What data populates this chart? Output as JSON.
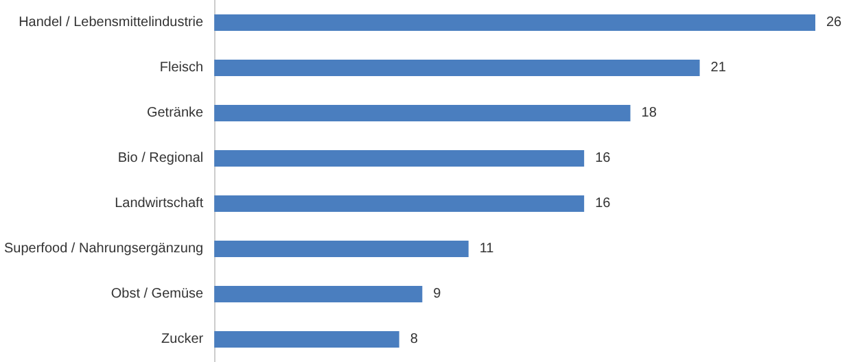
{
  "chart_data": {
    "type": "bar",
    "orientation": "horizontal",
    "categories": [
      "Handel / Lebensmittelindustrie",
      "Fleisch",
      "Getränke",
      "Bio / Regional",
      "Landwirtschaft",
      "Superfood / Nahrungsergänzung",
      "Obst / Gemüse",
      "Zucker"
    ],
    "values": [
      26,
      21,
      18,
      16,
      16,
      11,
      9,
      8
    ],
    "color": "#4a7ebf",
    "data_labels": true
  }
}
